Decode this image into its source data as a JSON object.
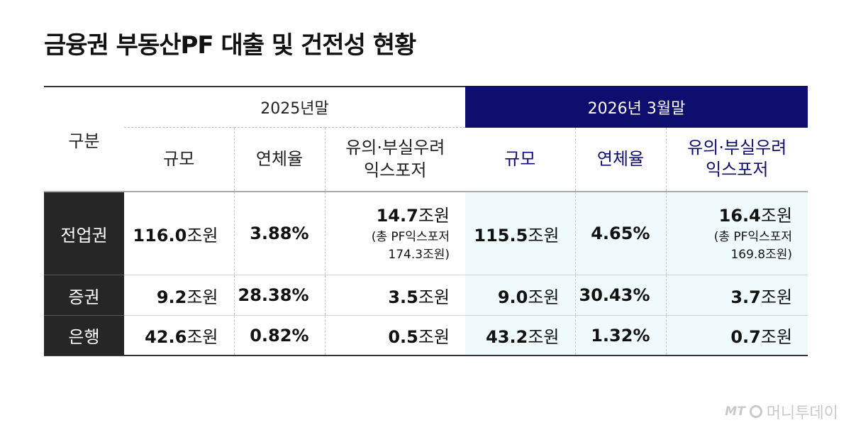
{
  "title": "금융권 부동산PF 대출 및 건전성 현황",
  "header": {
    "gubun": "구분",
    "period_a": "2025년말",
    "period_b": "2026년 3월말",
    "col_scale": "규모",
    "col_delinquency": "연체율",
    "col_risk_line1": "유의·부실우려",
    "col_risk_line2": "익스포저"
  },
  "rows": [
    {
      "label": "전업권",
      "a_scale_num": "116.0",
      "a_scale_unit": "조원",
      "a_delinq": "3.88%",
      "a_risk_num": "14.7",
      "a_risk_unit": "조원",
      "a_risk_note1": "(총 PF익스포저",
      "a_risk_note2": "174.3조원)",
      "b_scale_num": "115.5",
      "b_scale_unit": "조원",
      "b_delinq": "4.65%",
      "b_risk_num": "16.4",
      "b_risk_unit": "조원",
      "b_risk_note1": "(총 PF익스포저",
      "b_risk_note2": "169.8조원)"
    },
    {
      "label": "증권",
      "a_scale_num": "9.2",
      "a_scale_unit": "조원",
      "a_delinq": "28.38%",
      "a_risk_num": "3.5",
      "a_risk_unit": "조원",
      "b_scale_num": "9.0",
      "b_scale_unit": "조원",
      "b_delinq": "30.43%",
      "b_risk_num": "3.7",
      "b_risk_unit": "조원"
    },
    {
      "label": "은행",
      "a_scale_num": "42.6",
      "a_scale_unit": "조원",
      "a_delinq": "0.82%",
      "a_risk_num": "0.5",
      "a_risk_unit": "조원",
      "b_scale_num": "43.2",
      "b_scale_unit": "조원",
      "b_delinq": "1.32%",
      "b_risk_num": "0.7",
      "b_risk_unit": "조원"
    }
  ],
  "brand": {
    "prefix": "MT",
    "name": "머니투데이"
  },
  "colors": {
    "header_navy": "#0e0e6e",
    "highlight_bg": "#eefafc",
    "label_bg": "#262626"
  }
}
